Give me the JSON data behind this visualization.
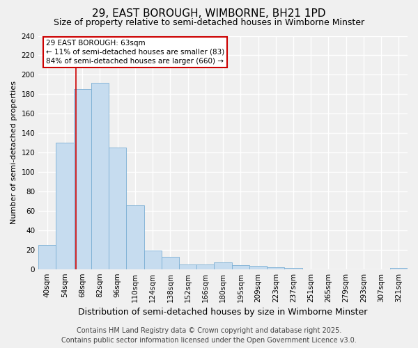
{
  "title": "29, EAST BOROUGH, WIMBORNE, BH21 1PD",
  "subtitle": "Size of property relative to semi-detached houses in Wimborne Minster",
  "xlabel": "Distribution of semi-detached houses by size in Wimborne Minster",
  "ylabel": "Number of semi-detached properties",
  "bin_labels": [
    "40sqm",
    "54sqm",
    "68sqm",
    "82sqm",
    "96sqm",
    "110sqm",
    "124sqm",
    "138sqm",
    "152sqm",
    "166sqm",
    "180sqm",
    "195sqm",
    "209sqm",
    "223sqm",
    "237sqm",
    "251sqm",
    "265sqm",
    "279sqm",
    "293sqm",
    "307sqm",
    "321sqm"
  ],
  "bar_heights": [
    25,
    130,
    185,
    192,
    125,
    66,
    19,
    13,
    5,
    5,
    7,
    4,
    3,
    2,
    1,
    0,
    0,
    0,
    0,
    0,
    1
  ],
  "bar_color": "#c6dcef",
  "bar_edge_color": "#7bafd4",
  "property_line_bin_index": 1.64,
  "annotation_title": "29 EAST BOROUGH: 63sqm",
  "annotation_line1": "← 11% of semi-detached houses are smaller (83)",
  "annotation_line2": "84% of semi-detached houses are larger (660) →",
  "ylim": [
    0,
    240
  ],
  "yticks": [
    0,
    20,
    40,
    60,
    80,
    100,
    120,
    140,
    160,
    180,
    200,
    220,
    240
  ],
  "footer_line1": "Contains HM Land Registry data © Crown copyright and database right 2025.",
  "footer_line2": "Contains public sector information licensed under the Open Government Licence v3.0.",
  "background_color": "#f0f0f0",
  "grid_color": "#ffffff",
  "annotation_box_color": "#ffffff",
  "annotation_box_edge": "#cc0000",
  "red_line_color": "#cc0000",
  "title_fontsize": 11,
  "subtitle_fontsize": 9,
  "ylabel_fontsize": 8,
  "xlabel_fontsize": 9,
  "tick_fontsize": 7.5,
  "annotation_fontsize": 7.5,
  "footer_fontsize": 7
}
